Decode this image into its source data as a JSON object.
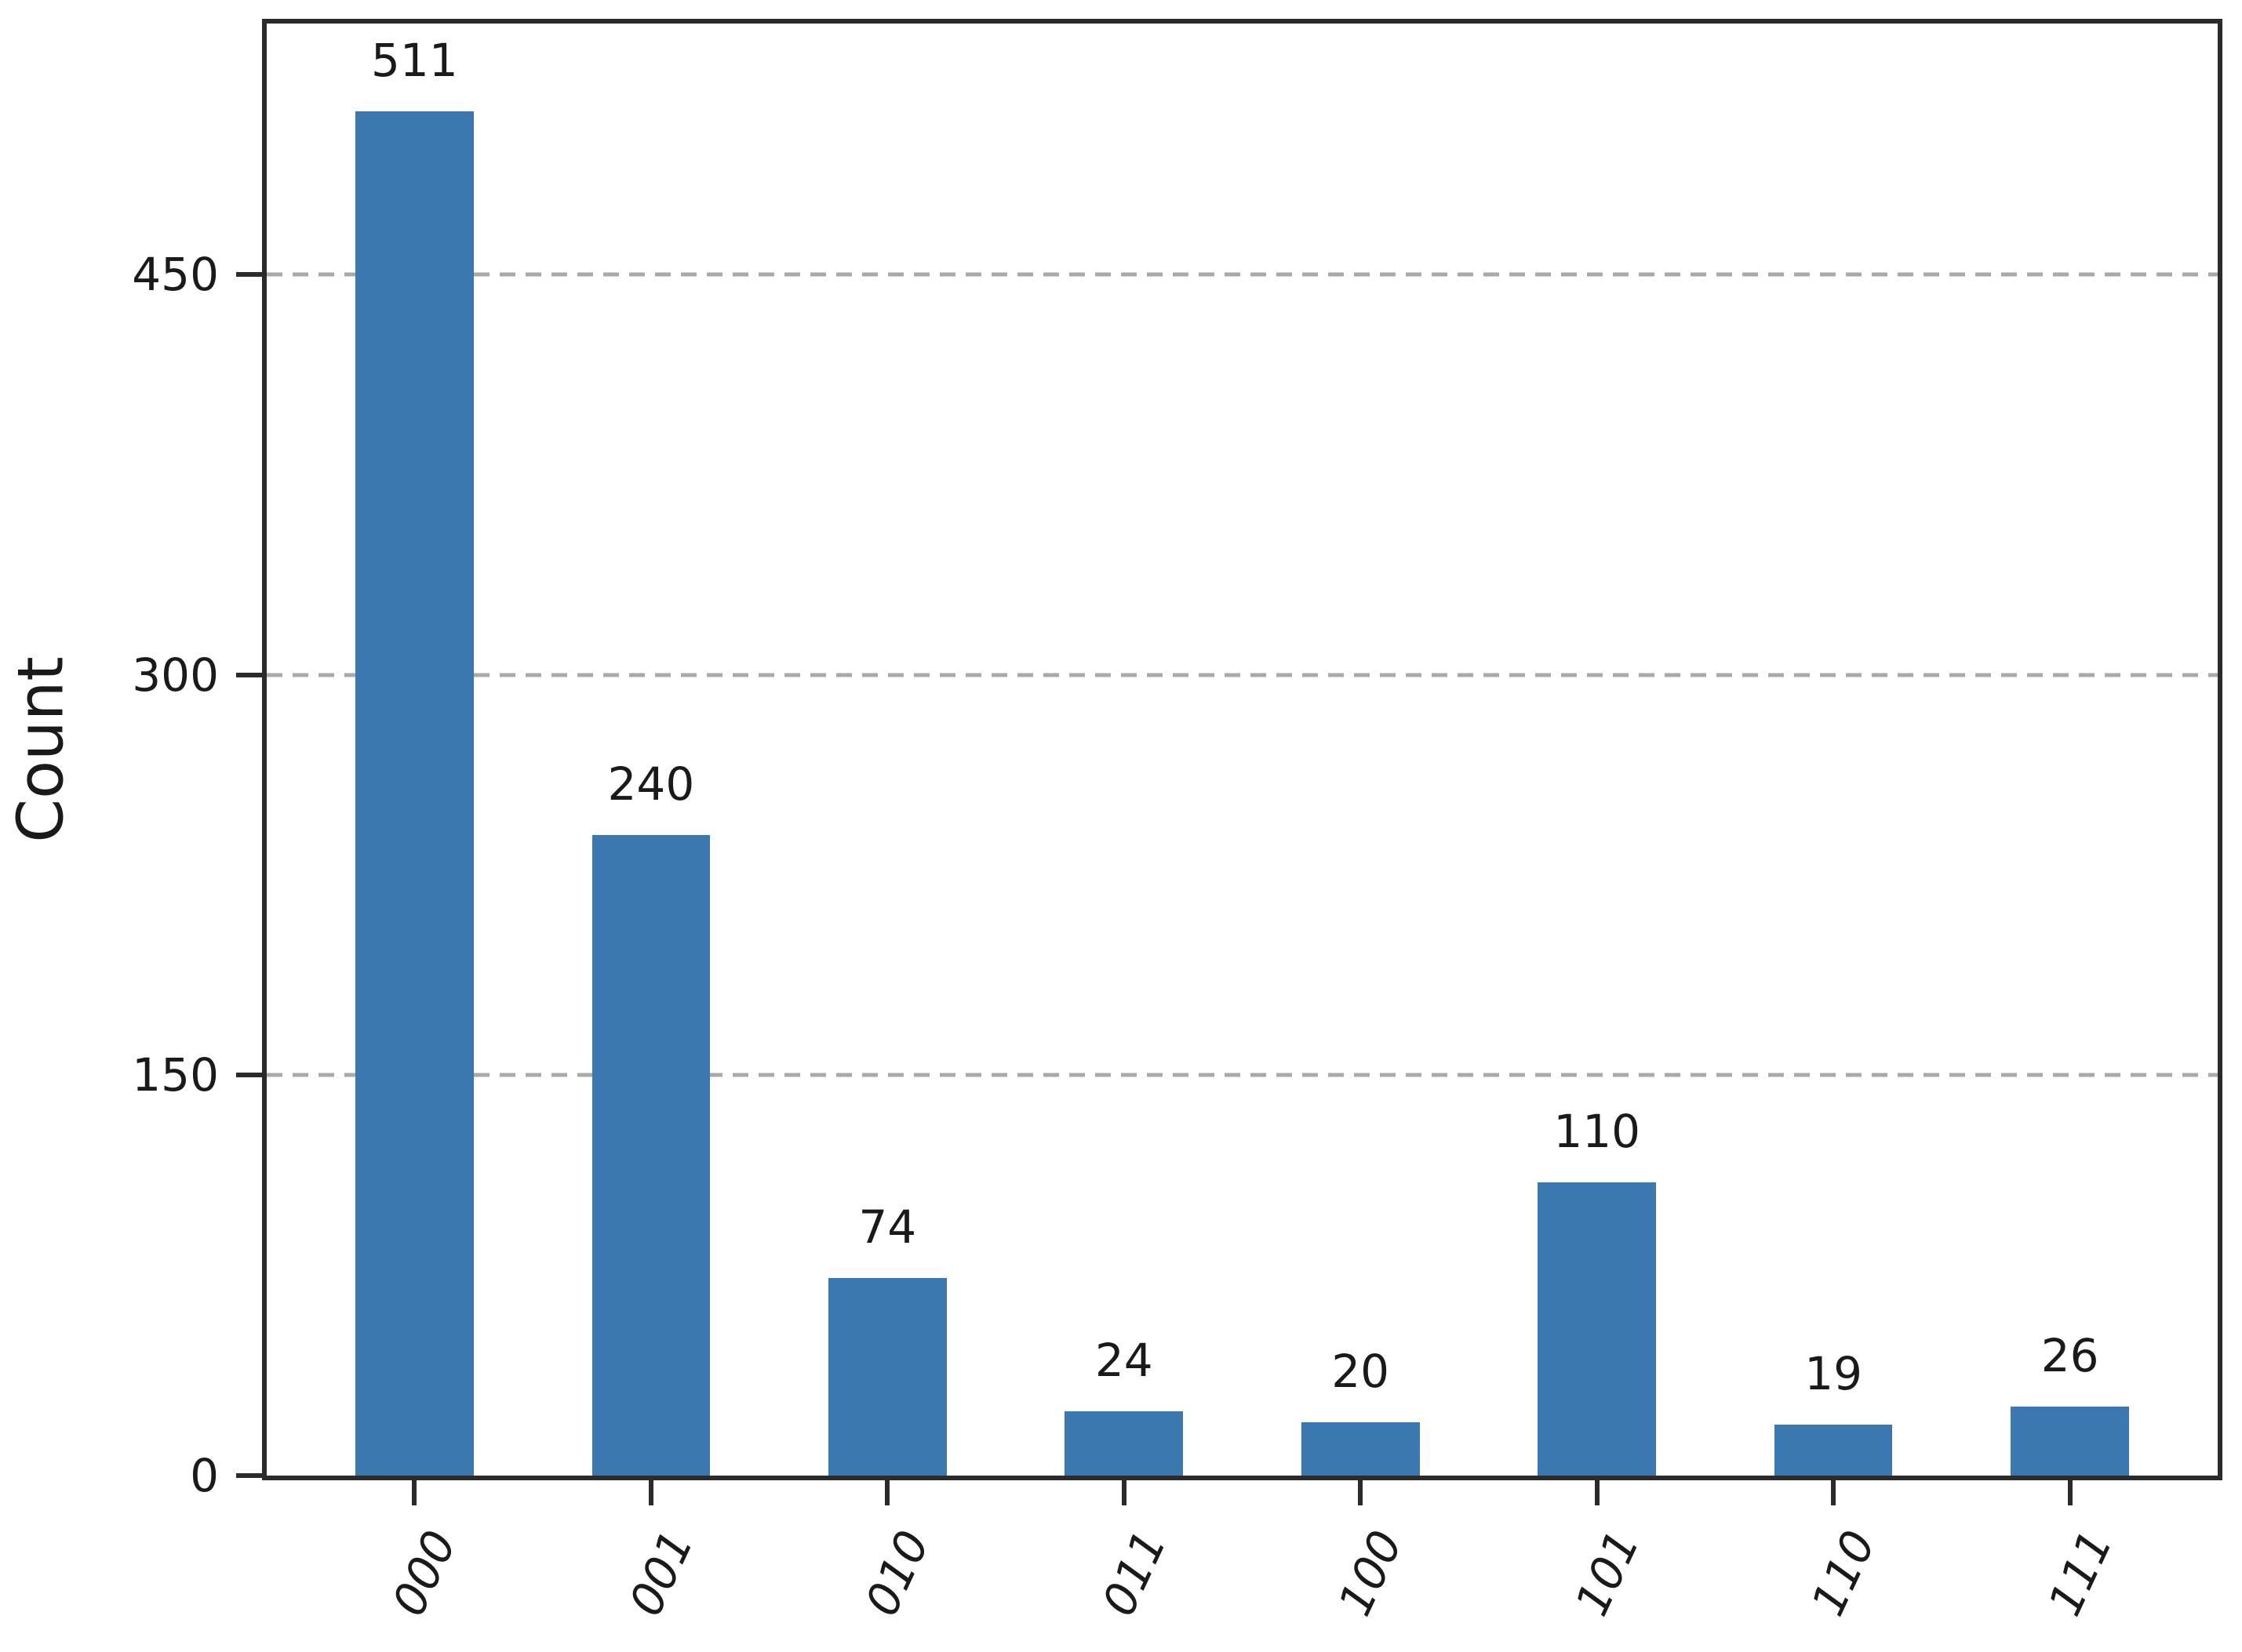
{
  "chart_data": {
    "type": "bar",
    "title": "",
    "xlabel": "",
    "ylabel": "Count",
    "categories": [
      "000",
      "001",
      "010",
      "011",
      "100",
      "101",
      "110",
      "111"
    ],
    "values": [
      511,
      240,
      74,
      24,
      20,
      110,
      19,
      26
    ],
    "ylim": [
      0,
      544
    ],
    "yticks": [
      0,
      150,
      300,
      450
    ],
    "grid": "horizontal-dashed-at-nonzero-yticks",
    "legend_position": "none",
    "x_tick_rotation_deg": 65,
    "x_tick_style": "italic",
    "bar_width_fraction_of_slot": 0.5,
    "colors": {
      "bar": "#3B78B0",
      "axis": "#2b2b2b",
      "gridline": "#a9a9a9",
      "text": "#1a1a1a",
      "background": "#ffffff"
    }
  }
}
